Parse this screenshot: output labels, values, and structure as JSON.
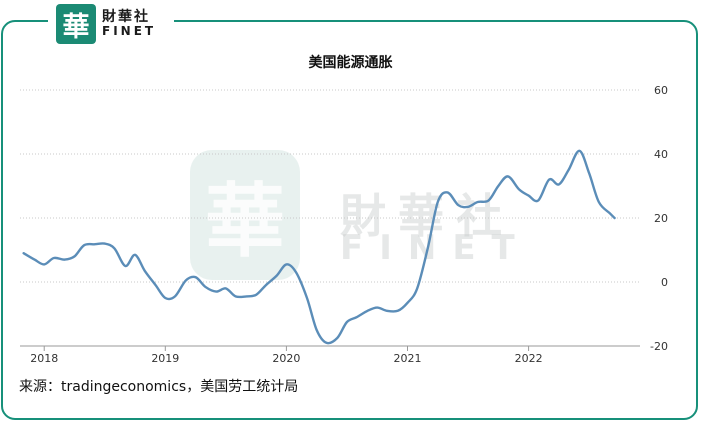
{
  "brand": {
    "logo_char": "華",
    "name_cn": "財華社",
    "name_en": "FINET"
  },
  "watermark": {
    "logo_char": "華",
    "name_cn": "財華社",
    "name_en": "FINET"
  },
  "source": "来源：tradingeconomics，美国劳工统计局",
  "colors": {
    "line": "#5b8db8",
    "frame": "#17907a",
    "grid": "#c8c8c8"
  },
  "chart_data": {
    "type": "line",
    "title": "美国能源通胀",
    "xlabel": "",
    "ylabel": "",
    "ylim": [
      -20,
      60
    ],
    "yticks": [
      60,
      40,
      20,
      0,
      -20
    ],
    "xticks": [
      "2018",
      "2019",
      "2020",
      "2021",
      "2022"
    ],
    "xrange": [
      2017.8,
      2022.92
    ],
    "grid": true,
    "y_axis_position": "right",
    "series": [
      {
        "points": [
          [
            2017.83,
            9.0
          ],
          [
            2017.92,
            7.0
          ],
          [
            2018.0,
            5.5
          ],
          [
            2018.08,
            7.5
          ],
          [
            2018.17,
            7.0
          ],
          [
            2018.25,
            8.0
          ],
          [
            2018.33,
            11.5
          ],
          [
            2018.42,
            11.8
          ],
          [
            2018.5,
            12.0
          ],
          [
            2018.58,
            10.5
          ],
          [
            2018.67,
            5.0
          ],
          [
            2018.75,
            8.5
          ],
          [
            2018.83,
            3.5
          ],
          [
            2018.92,
            -1.0
          ],
          [
            2019.0,
            -5.0
          ],
          [
            2019.08,
            -4.5
          ],
          [
            2019.17,
            0.5
          ],
          [
            2019.25,
            1.5
          ],
          [
            2019.33,
            -1.5
          ],
          [
            2019.42,
            -3.0
          ],
          [
            2019.5,
            -2.0
          ],
          [
            2019.58,
            -4.5
          ],
          [
            2019.67,
            -4.5
          ],
          [
            2019.75,
            -4.0
          ],
          [
            2019.83,
            -1.0
          ],
          [
            2019.92,
            2.0
          ],
          [
            2020.0,
            5.5
          ],
          [
            2020.08,
            3.0
          ],
          [
            2020.17,
            -5.0
          ],
          [
            2020.25,
            -15.0
          ],
          [
            2020.33,
            -19.0
          ],
          [
            2020.42,
            -17.5
          ],
          [
            2020.5,
            -12.5
          ],
          [
            2020.58,
            -11.0
          ],
          [
            2020.67,
            -9.0
          ],
          [
            2020.75,
            -8.0
          ],
          [
            2020.83,
            -9.0
          ],
          [
            2020.92,
            -9.0
          ],
          [
            2021.0,
            -6.5
          ],
          [
            2021.08,
            -2.0
          ],
          [
            2021.17,
            11.0
          ],
          [
            2021.25,
            25.0
          ],
          [
            2021.33,
            28.0
          ],
          [
            2021.42,
            24.0
          ],
          [
            2021.5,
            23.5
          ],
          [
            2021.58,
            25.0
          ],
          [
            2021.67,
            25.5
          ],
          [
            2021.75,
            30.0
          ],
          [
            2021.83,
            33.0
          ],
          [
            2021.92,
            29.0
          ],
          [
            2022.0,
            27.0
          ],
          [
            2022.08,
            25.5
          ],
          [
            2022.17,
            32.0
          ],
          [
            2022.25,
            30.5
          ],
          [
            2022.33,
            35.0
          ],
          [
            2022.42,
            41.0
          ],
          [
            2022.5,
            34.0
          ],
          [
            2022.58,
            25.0
          ],
          [
            2022.67,
            21.5
          ],
          [
            2022.71,
            20.0
          ]
        ]
      }
    ]
  }
}
